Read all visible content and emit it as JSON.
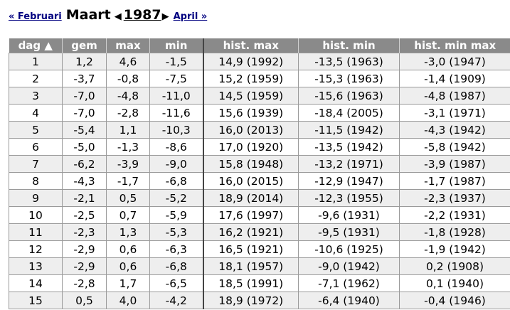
{
  "nav": {
    "prev": "« Februari",
    "month": "Maart",
    "prev_arrow": "◀",
    "year": "1987",
    "next_arrow": "▶",
    "next": "April »"
  },
  "table": {
    "headers": [
      "dag ▲",
      "gem",
      "max",
      "min",
      "hist. max",
      "hist. min",
      "hist. min max"
    ],
    "rows": [
      [
        "1",
        "1,2",
        "4,6",
        "-1,5",
        "14,9 (1992)",
        "-13,5 (1963)",
        "-3,0 (1947)"
      ],
      [
        "2",
        "-3,7",
        "-0,8",
        "-7,5",
        "15,2 (1959)",
        "-15,3 (1963)",
        "-1,4 (1909)"
      ],
      [
        "3",
        "-7,0",
        "-4,8",
        "-11,0",
        "14,5 (1959)",
        "-15,6 (1963)",
        "-4,8 (1987)"
      ],
      [
        "4",
        "-7,0",
        "-2,8",
        "-11,6",
        "15,6 (1939)",
        "-18,4 (2005)",
        "-3,1 (1971)"
      ],
      [
        "5",
        "-5,4",
        "1,1",
        "-10,3",
        "16,0 (2013)",
        "-11,5 (1942)",
        "-4,3 (1942)"
      ],
      [
        "6",
        "-5,0",
        "-1,3",
        "-8,6",
        "17,0 (1920)",
        "-13,5 (1942)",
        "-5,8 (1942)"
      ],
      [
        "7",
        "-6,2",
        "-3,9",
        "-9,0",
        "15,8 (1948)",
        "-13,2 (1971)",
        "-3,9 (1987)"
      ],
      [
        "8",
        "-4,3",
        "-1,7",
        "-6,8",
        "16,0 (2015)",
        "-12,9 (1947)",
        "-1,7 (1987)"
      ],
      [
        "9",
        "-2,1",
        "0,5",
        "-5,2",
        "18,9 (2014)",
        "-12,3 (1955)",
        "-2,3 (1937)"
      ],
      [
        "10",
        "-2,5",
        "0,7",
        "-5,9",
        "17,6 (1997)",
        "-9,6 (1931)",
        "-2,2 (1931)"
      ],
      [
        "11",
        "-2,3",
        "1,3",
        "-5,3",
        "16,2 (1921)",
        "-9,5 (1931)",
        "-1,8 (1928)"
      ],
      [
        "12",
        "-2,9",
        "0,6",
        "-6,3",
        "16,5 (1921)",
        "-10,6 (1925)",
        "-1,9 (1942)"
      ],
      [
        "13",
        "-2,9",
        "0,6",
        "-6,8",
        "18,1 (1957)",
        "-9,0 (1942)",
        "0,2 (1908)"
      ],
      [
        "14",
        "-2,8",
        "1,7",
        "-6,5",
        "18,5 (1991)",
        "-7,1 (1962)",
        "0,1 (1940)"
      ],
      [
        "15",
        "0,5",
        "4,0",
        "-4,2",
        "18,9 (1972)",
        "-6,4 (1940)",
        "-0,4 (1946)"
      ]
    ]
  }
}
